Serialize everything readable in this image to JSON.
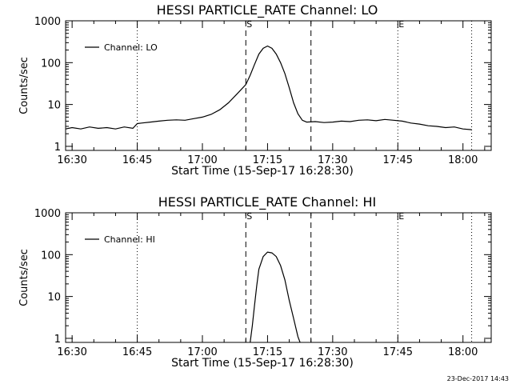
{
  "chart_data": [
    {
      "type": "line",
      "title": "HESSI PARTICLE_RATE Channel: LO",
      "xlabel": "Start Time (15-Sep-17 16:28:30)",
      "ylabel": "Counts/sec",
      "yscale": "log",
      "xlim": [
        "16:28:30",
        "18:06:30"
      ],
      "ylim": [
        0.8,
        1000
      ],
      "x_ticks": [
        "16:30",
        "16:45",
        "17:00",
        "17:15",
        "17:30",
        "17:45",
        "18:00"
      ],
      "y_ticks": [
        "1",
        "10",
        "100",
        "1000"
      ],
      "legend": {
        "position": "top-left",
        "entries": [
          "Channel: LO"
        ]
      },
      "markers": [
        {
          "label": "",
          "time": "16:45",
          "style": "dotted"
        },
        {
          "label": "S",
          "time": "17:10",
          "style": "dashed"
        },
        {
          "label": "",
          "time": "17:25",
          "style": "dashed"
        },
        {
          "label": "E",
          "time": "17:45",
          "style": "dotted"
        },
        {
          "label": "",
          "time": "18:02",
          "style": "dotted"
        }
      ],
      "series": [
        {
          "name": "Channel: LO",
          "x": [
            "16:28:30",
            "16:30",
            "16:32",
            "16:34",
            "16:36",
            "16:38",
            "16:40",
            "16:42",
            "16:44",
            "16:45",
            "16:46",
            "16:48",
            "16:50",
            "16:52",
            "16:54",
            "16:56",
            "16:58",
            "17:00",
            "17:02",
            "17:04",
            "17:06",
            "17:08",
            "17:10",
            "17:11",
            "17:12",
            "17:13",
            "17:14",
            "17:15",
            "17:16",
            "17:17",
            "17:18",
            "17:19",
            "17:20",
            "17:21",
            "17:22",
            "17:23",
            "17:24",
            "17:26",
            "17:28",
            "17:30",
            "17:32",
            "17:34",
            "17:36",
            "17:38",
            "17:40",
            "17:42",
            "17:44",
            "17:46",
            "17:48",
            "17:50",
            "17:52",
            "17:54",
            "17:56",
            "17:58",
            "18:00",
            "18:02"
          ],
          "y": [
            2.6,
            2.8,
            2.6,
            2.9,
            2.7,
            2.8,
            2.6,
            2.9,
            2.7,
            3.5,
            3.6,
            3.8,
            4.0,
            4.2,
            4.3,
            4.2,
            4.6,
            5.0,
            5.8,
            7.5,
            11,
            18,
            30,
            50,
            90,
            160,
            220,
            250,
            220,
            160,
            100,
            55,
            25,
            11,
            6,
            4.2,
            3.8,
            3.9,
            3.7,
            3.8,
            4.0,
            3.9,
            4.2,
            4.3,
            4.1,
            4.4,
            4.2,
            4.0,
            3.6,
            3.4,
            3.1,
            3.0,
            2.8,
            2.9,
            2.6,
            2.5
          ]
        }
      ]
    },
    {
      "type": "line",
      "title": "HESSI PARTICLE_RATE Channel: HI",
      "xlabel": "Start Time (15-Sep-17 16:28:30)",
      "ylabel": "Counts/sec",
      "yscale": "log",
      "xlim": [
        "16:28:30",
        "18:06:30"
      ],
      "ylim": [
        0.8,
        1000
      ],
      "x_ticks": [
        "16:30",
        "16:45",
        "17:00",
        "17:15",
        "17:30",
        "17:45",
        "18:00"
      ],
      "y_ticks": [
        "1",
        "10",
        "100",
        "1000"
      ],
      "legend": {
        "position": "top-left",
        "entries": [
          "Channel: HI"
        ]
      },
      "markers": [
        {
          "label": "",
          "time": "16:45",
          "style": "dotted"
        },
        {
          "label": "S",
          "time": "17:10",
          "style": "dashed"
        },
        {
          "label": "",
          "time": "17:25",
          "style": "dashed"
        },
        {
          "label": "E",
          "time": "17:45",
          "style": "dotted"
        },
        {
          "label": "",
          "time": "18:02",
          "style": "dotted"
        }
      ],
      "series": [
        {
          "name": "Channel: HI",
          "x": [
            "17:11",
            "17:11:30",
            "17:12",
            "17:12:30",
            "17:13",
            "17:14",
            "17:15",
            "17:16",
            "17:17",
            "17:18",
            "17:19",
            "17:20",
            "17:21",
            "17:22",
            "17:22:30"
          ],
          "y": [
            0.8,
            2.0,
            6,
            18,
            45,
            90,
            115,
            110,
            90,
            55,
            25,
            8,
            3,
            1.1,
            0.8
          ]
        }
      ]
    }
  ],
  "footer": {
    "timestamp": "23-Dec-2017 14:43"
  },
  "colors": {
    "background": "#ffffff",
    "foreground": "#000000"
  }
}
